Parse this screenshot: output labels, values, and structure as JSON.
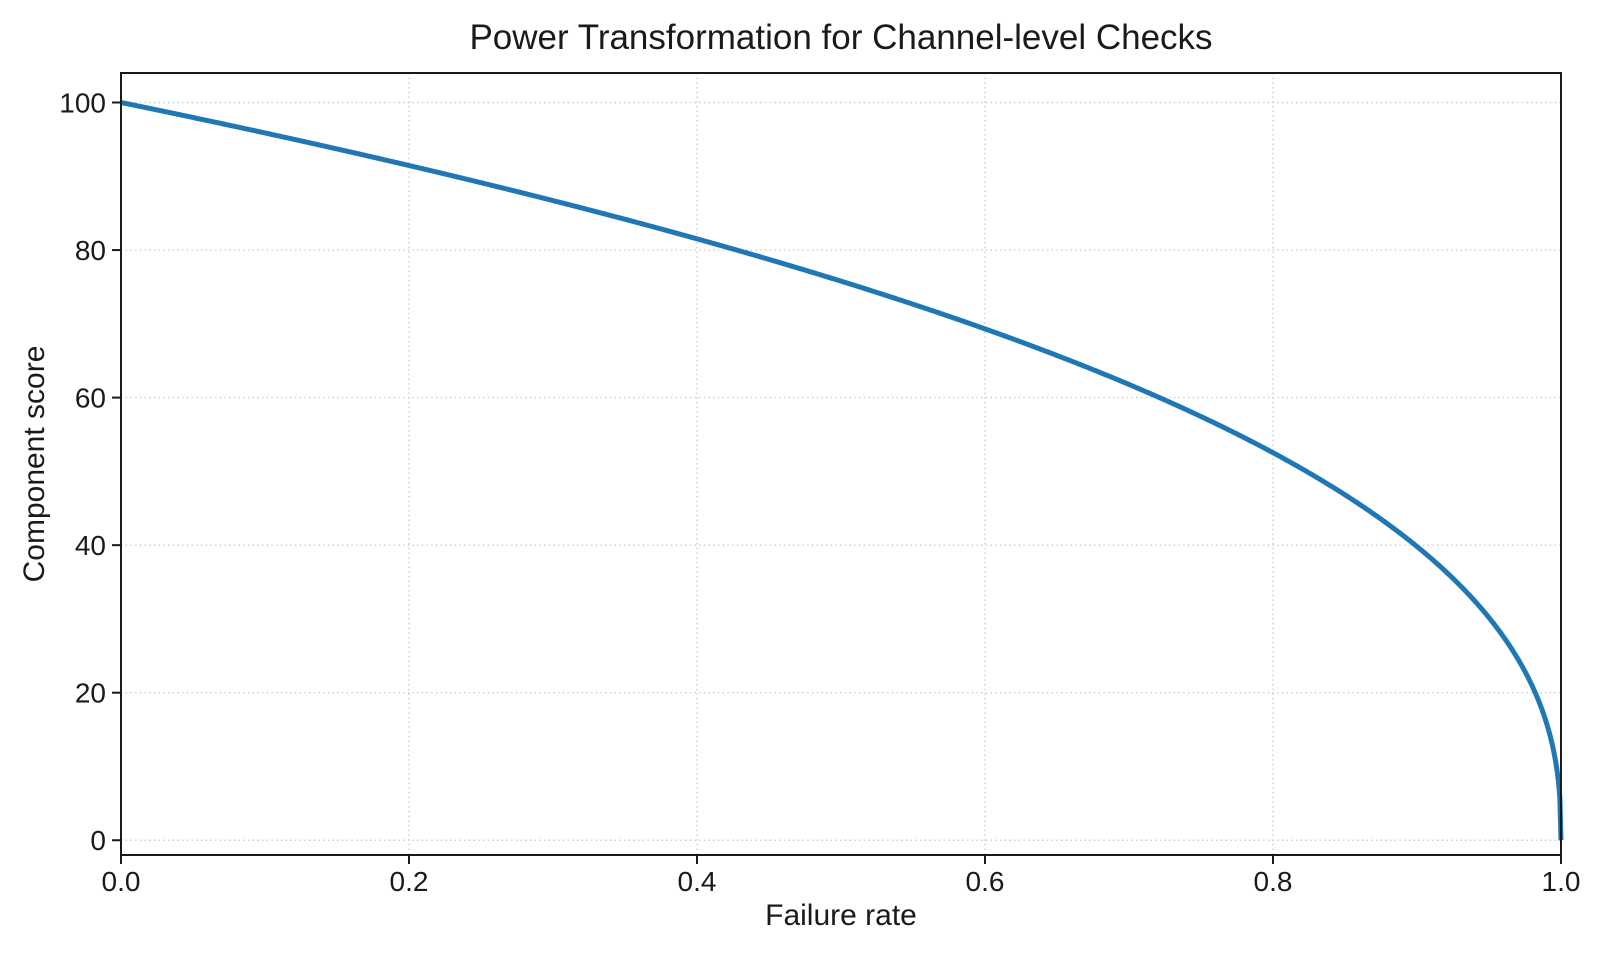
{
  "chart_data": {
    "type": "line",
    "title": "Power Transformation for Channel-level Checks",
    "xlabel": "Failure rate",
    "ylabel": "Component score",
    "xlim": [
      0.0,
      1.0
    ],
    "ylim": [
      -2.0,
      104.0
    ],
    "x_ticks": [
      0.0,
      0.2,
      0.4,
      0.6,
      0.8,
      1.0
    ],
    "x_tick_labels": [
      "0.0",
      "0.2",
      "0.4",
      "0.6",
      "0.8",
      "1.0"
    ],
    "y_ticks": [
      0,
      20,
      40,
      60,
      80,
      100
    ],
    "y_tick_labels": [
      "0",
      "20",
      "40",
      "60",
      "80",
      "100"
    ],
    "grid": true,
    "grid_linestyle": "dotted",
    "legend": false,
    "series": [
      {
        "name": "component score",
        "color": "#1f77b4",
        "line_width": 5,
        "formula": "score = 100 * (1 - failure_rate)^0.4",
        "power": 0.4,
        "scale": 100,
        "x": [
          0.0,
          0.05,
          0.1,
          0.15,
          0.2,
          0.25,
          0.3,
          0.35,
          0.4,
          0.45,
          0.5,
          0.55,
          0.6,
          0.65,
          0.7,
          0.75,
          0.8,
          0.85,
          0.9,
          0.95,
          0.98,
          0.99,
          1.0
        ],
        "y": [
          100.0,
          98.0,
          95.9,
          93.7,
          91.5,
          89.1,
          86.7,
          84.2,
          81.5,
          78.7,
          75.8,
          72.7,
          69.3,
          65.7,
          61.8,
          57.4,
          52.5,
          46.8,
          39.8,
          30.2,
          20.9,
          15.8,
          0.0
        ]
      }
    ]
  },
  "colors": {
    "background": "#ffffff",
    "line": "#1f77b4",
    "grid": "#cdcdcd",
    "axis": "#1a1a1a",
    "text": "#1a1a1a"
  }
}
